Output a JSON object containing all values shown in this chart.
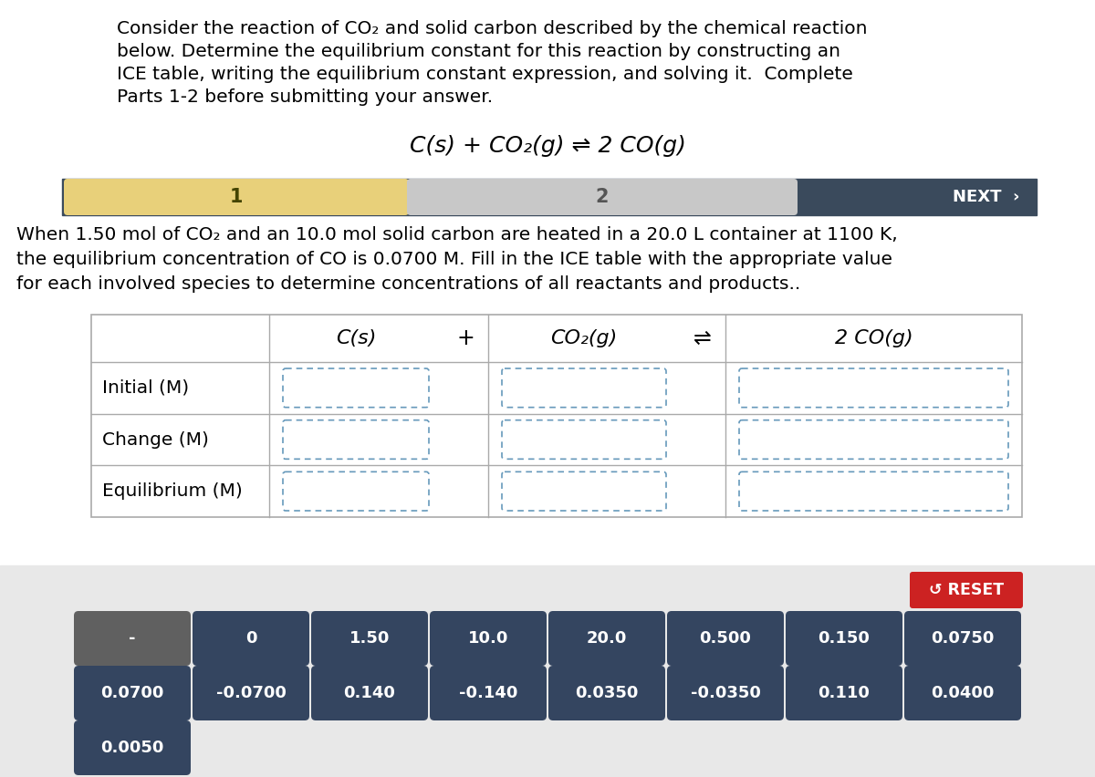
{
  "bg_color": "#e8e8e8",
  "white_bg": "#ffffff",
  "title_lines": [
    "Consider the reaction of CO₂ and solid carbon described by the chemical reaction",
    "below. Determine the equilibrium constant for this reaction by constructing an",
    "ICE table, writing the equilibrium constant expression, and solving it.  Complete",
    "Parts 1-2 before submitting your answer."
  ],
  "equation": "C(s) + CO₂(g) ⇌ 2 CO(g)",
  "nav_bar_color": "#3a4a5c",
  "nav_tab1_color": "#e8d07a",
  "nav_tab2_color": "#c8c8c8",
  "nav_tab1_text": "1",
  "nav_tab2_text": "2",
  "nav_next_text": "NEXT  ›",
  "body_lines": [
    "When 1.50 mol of CO₂ and an 10.0 mol solid carbon are heated in a 20.0 L container at 1100 K,",
    "the equilibrium concentration of CO is 0.0700 M. Fill in the ICE table with the appropriate value",
    "for each involved species to determine concentrations of all reactants and products.."
  ],
  "table_col1_header": "C(s)",
  "table_plus": "+",
  "table_col2_header": "CO₂(g)",
  "table_eq": "⇌",
  "table_col3_header": "2 CO(g)",
  "table_row_labels": [
    "Initial (M)",
    "Change (M)",
    "Equilibrium (M)"
  ],
  "reset_color": "#cc2222",
  "reset_text": "↺ RESET",
  "button_color_dark": "#344560",
  "button_color_gray": "#606060",
  "button_row1": [
    "-",
    "0",
    "1.50",
    "10.0",
    "20.0",
    "0.500",
    "0.150",
    "0.0750"
  ],
  "button_row2": [
    "0.0700",
    "-0.0700",
    "0.140",
    "-0.140",
    "0.0350",
    "-0.0350",
    "0.110",
    "0.0400"
  ],
  "button_row3": [
    "0.0050"
  ],
  "button_row1_colors": [
    "gray",
    "dark",
    "dark",
    "dark",
    "dark",
    "dark",
    "dark",
    "dark"
  ]
}
